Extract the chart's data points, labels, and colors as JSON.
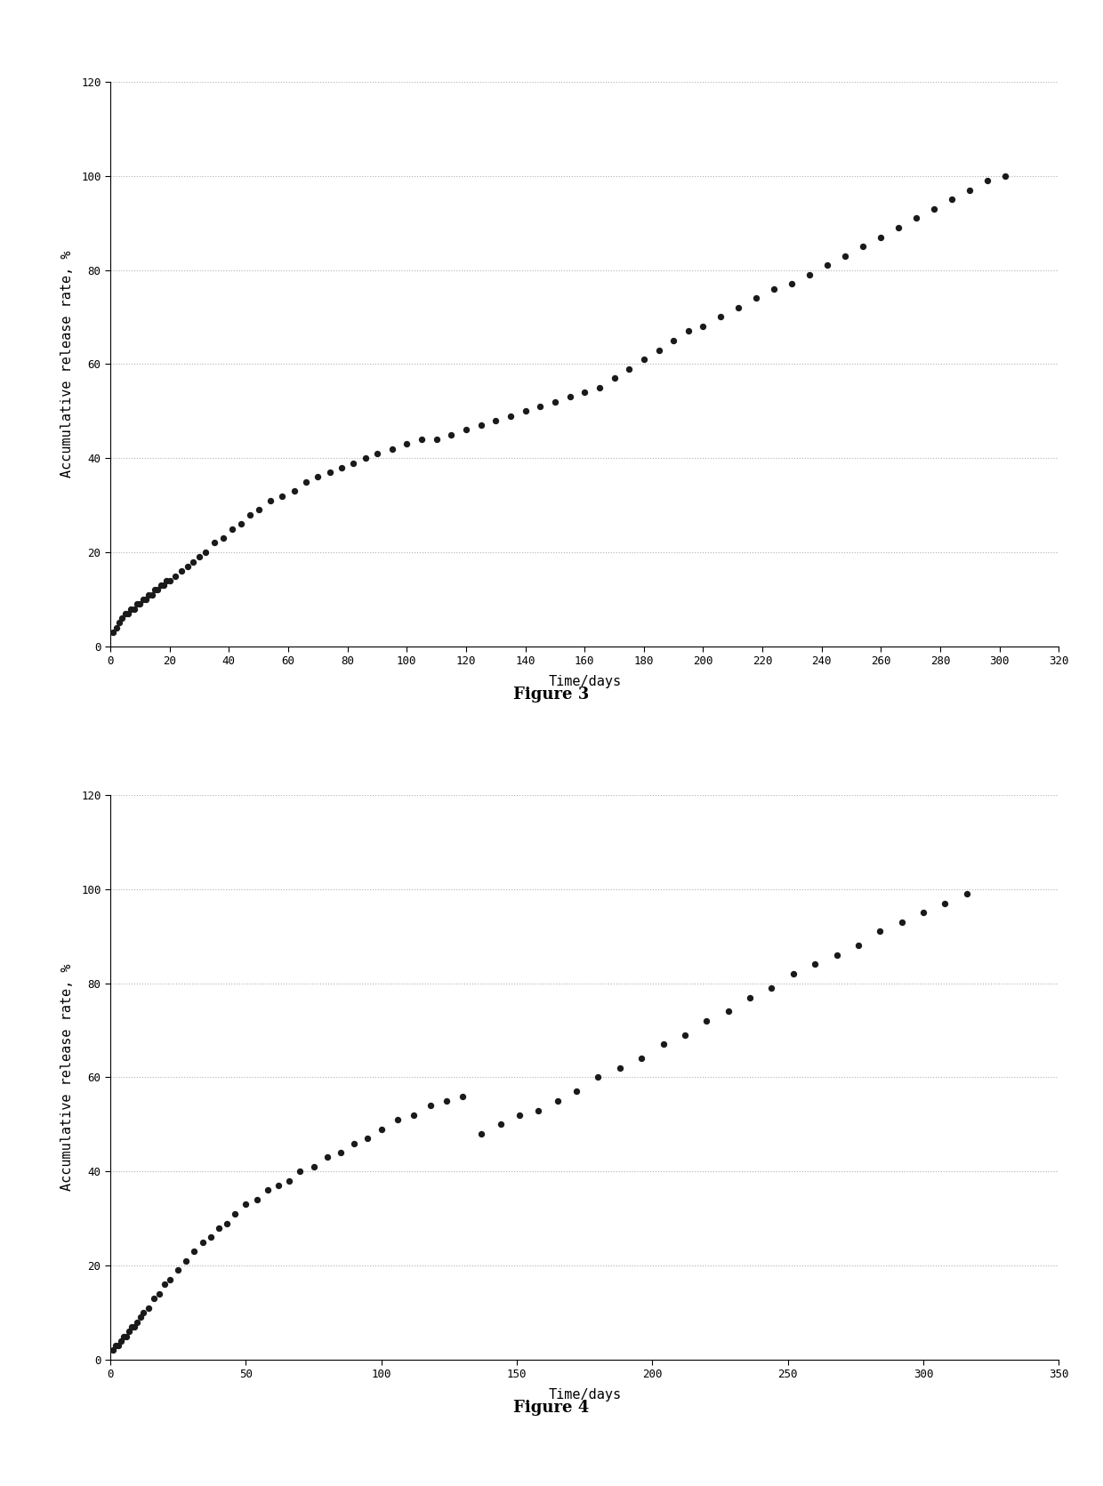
{
  "fig3": {
    "title": "Figure 3",
    "xlabel": "Time/days",
    "ylabel": "Accumulative release rate, %",
    "xlim": [
      0,
      320
    ],
    "ylim": [
      0,
      120
    ],
    "xticks": [
      0,
      20,
      40,
      60,
      80,
      100,
      120,
      140,
      160,
      180,
      200,
      220,
      240,
      260,
      280,
      300,
      320
    ],
    "yticks": [
      0,
      20,
      40,
      60,
      80,
      100,
      120
    ],
    "x": [
      1,
      2,
      3,
      4,
      5,
      6,
      7,
      8,
      9,
      10,
      11,
      12,
      13,
      14,
      15,
      16,
      17,
      18,
      19,
      20,
      22,
      24,
      26,
      28,
      30,
      32,
      35,
      38,
      41,
      44,
      47,
      50,
      54,
      58,
      62,
      66,
      70,
      74,
      78,
      82,
      86,
      90,
      95,
      100,
      105,
      110,
      115,
      120,
      125,
      130,
      135,
      140,
      145,
      150,
      155,
      160,
      165,
      170,
      175,
      180,
      185,
      190,
      195,
      200,
      206,
      212,
      218,
      224,
      230,
      236,
      242,
      248,
      254,
      260,
      266,
      272,
      278,
      284,
      290,
      296,
      302
    ],
    "y": [
      3,
      4,
      5,
      6,
      7,
      7,
      8,
      8,
      9,
      9,
      10,
      10,
      11,
      11,
      12,
      12,
      13,
      13,
      14,
      14,
      15,
      16,
      17,
      18,
      19,
      20,
      22,
      23,
      25,
      26,
      28,
      29,
      31,
      32,
      33,
      35,
      36,
      37,
      38,
      39,
      40,
      41,
      42,
      43,
      44,
      44,
      45,
      46,
      47,
      48,
      49,
      50,
      51,
      52,
      53,
      54,
      55,
      57,
      59,
      61,
      63,
      65,
      67,
      68,
      70,
      72,
      74,
      76,
      77,
      79,
      81,
      83,
      85,
      87,
      89,
      91,
      93,
      95,
      97,
      99,
      100
    ],
    "marker_color": "#1a1a1a",
    "marker_size": 28
  },
  "fig4": {
    "title": "Figure 4",
    "xlabel": "Time/days",
    "ylabel": "Accumulative release rate, %",
    "xlim": [
      0,
      350
    ],
    "ylim": [
      0,
      120
    ],
    "xticks": [
      0,
      50,
      100,
      150,
      200,
      250,
      300,
      350
    ],
    "yticks": [
      0,
      20,
      40,
      60,
      80,
      100,
      120
    ],
    "x": [
      1,
      2,
      3,
      4,
      5,
      6,
      7,
      8,
      9,
      10,
      11,
      12,
      14,
      16,
      18,
      20,
      22,
      25,
      28,
      31,
      34,
      37,
      40,
      43,
      46,
      50,
      54,
      58,
      62,
      66,
      70,
      75,
      80,
      85,
      90,
      95,
      100,
      106,
      112,
      118,
      124,
      130,
      137,
      144,
      151,
      158,
      165,
      172,
      180,
      188,
      196,
      204,
      212,
      220,
      228,
      236,
      244,
      252,
      260,
      268,
      276,
      284,
      292,
      300,
      308,
      316
    ],
    "y": [
      2,
      3,
      3,
      4,
      5,
      5,
      6,
      7,
      7,
      8,
      9,
      10,
      11,
      13,
      14,
      16,
      17,
      19,
      21,
      23,
      25,
      26,
      28,
      29,
      31,
      33,
      34,
      36,
      37,
      38,
      40,
      41,
      43,
      44,
      46,
      47,
      49,
      51,
      52,
      54,
      55,
      56,
      48,
      50,
      52,
      53,
      55,
      57,
      60,
      62,
      64,
      67,
      69,
      72,
      74,
      77,
      79,
      82,
      84,
      86,
      88,
      91,
      93,
      95,
      97,
      99
    ],
    "marker_color": "#1a1a1a",
    "marker_size": 28
  },
  "background_color": "#ffffff",
  "grid_color": "#b0b0b0",
  "tick_fontsize": 9,
  "label_fontsize": 11,
  "caption_fontsize": 13
}
